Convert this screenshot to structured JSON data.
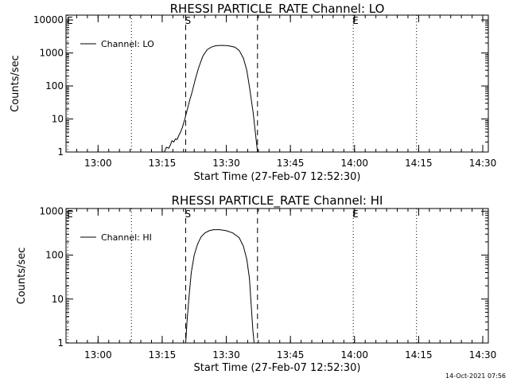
{
  "footer": {
    "timestamp": "14-Oct-2021 07:56"
  },
  "chart_data": [
    {
      "type": "line",
      "title": "RHESSI PARTICLE_RATE Channel: LO",
      "xlabel": "Start Time (27-Feb-07 12:52:30)",
      "ylabel": "Counts/sec",
      "x_tick_labels": [
        "13:00",
        "13:15",
        "13:30",
        "13:45",
        "14:00",
        "14:15",
        "14:30"
      ],
      "x_tick_values": [
        7.5,
        22.5,
        37.5,
        52.5,
        67.5,
        82.5,
        97.5
      ],
      "y_tick_labels": [
        "1",
        "10",
        "100",
        "1000",
        "10000"
      ],
      "y_tick_values": [
        1,
        10,
        100,
        1000,
        10000
      ],
      "xlim": [
        0,
        98.8
      ],
      "ylim": [
        1,
        14000
      ],
      "y_scale": "log",
      "legend": {
        "label": "Channel: LO",
        "position": "top-left"
      },
      "markers": [
        {
          "label": "E",
          "x": 0.4,
          "style": "dotted"
        },
        {
          "label": "",
          "x": 15.3,
          "style": "dotted"
        },
        {
          "label": "S",
          "x": 28.0,
          "style": "dashed"
        },
        {
          "label": "",
          "x": 44.8,
          "style": "dashed"
        },
        {
          "label": "E",
          "x": 67.2,
          "style": "dotted"
        },
        {
          "label": "",
          "x": 82.0,
          "style": "dotted"
        }
      ],
      "series": [
        {
          "name": "Channel: LO",
          "x": [
            23.0,
            23.5,
            24.0,
            24.4,
            24.8,
            25.2,
            25.6,
            26.0,
            26.4,
            26.8,
            27.2,
            27.7,
            28.2,
            28.9,
            29.5,
            30.2,
            31.0,
            32.0,
            33.0,
            34.0,
            35.0,
            36.5,
            38.0,
            39.5,
            40.5,
            41.5,
            42.3,
            43.0,
            43.8,
            44.4,
            44.8
          ],
          "values": [
            1.0,
            1.4,
            1.3,
            1.6,
            2.2,
            2.0,
            2.5,
            2.4,
            3.2,
            4.0,
            5.5,
            9.0,
            16,
            35,
            65,
            150,
            350,
            800,
            1250,
            1500,
            1650,
            1700,
            1650,
            1500,
            1200,
            700,
            300,
            80,
            15,
            3,
            1.0
          ]
        }
      ]
    },
    {
      "type": "line",
      "title": "RHESSI PARTICLE_RATE Channel: HI",
      "xlabel": "Start Time (27-Feb-07 12:52:30)",
      "ylabel": "Counts/sec",
      "x_tick_labels": [
        "13:00",
        "13:15",
        "13:30",
        "13:45",
        "14:00",
        "14:15",
        "14:30"
      ],
      "x_tick_values": [
        7.5,
        22.5,
        37.5,
        52.5,
        67.5,
        82.5,
        97.5
      ],
      "y_tick_labels": [
        "1",
        "10",
        "100",
        "1000"
      ],
      "y_tick_values": [
        1,
        10,
        100,
        1000
      ],
      "xlim": [
        0,
        98.8
      ],
      "ylim": [
        1,
        1150
      ],
      "y_scale": "log",
      "legend": {
        "label": "Channel: HI",
        "position": "top-left"
      },
      "markers": [
        {
          "label": "E",
          "x": 0.4,
          "style": "dotted"
        },
        {
          "label": "",
          "x": 15.3,
          "style": "dotted"
        },
        {
          "label": "S",
          "x": 28.0,
          "style": "dashed"
        },
        {
          "label": "",
          "x": 44.8,
          "style": "dashed"
        },
        {
          "label": "E",
          "x": 67.2,
          "style": "dotted"
        },
        {
          "label": "",
          "x": 82.0,
          "style": "dotted"
        }
      ],
      "series": [
        {
          "name": "Channel: HI",
          "x": [
            28.0,
            28.3,
            28.8,
            29.3,
            30.0,
            30.8,
            31.6,
            32.5,
            33.5,
            34.5,
            36.0,
            37.5,
            39.0,
            40.5,
            41.5,
            42.3,
            42.9,
            43.3,
            43.7,
            44.0
          ],
          "values": [
            1.0,
            3.0,
            12,
            40,
            100,
            180,
            260,
            320,
            360,
            380,
            380,
            360,
            320,
            250,
            160,
            80,
            30,
            8,
            2,
            1.0
          ]
        }
      ]
    }
  ]
}
